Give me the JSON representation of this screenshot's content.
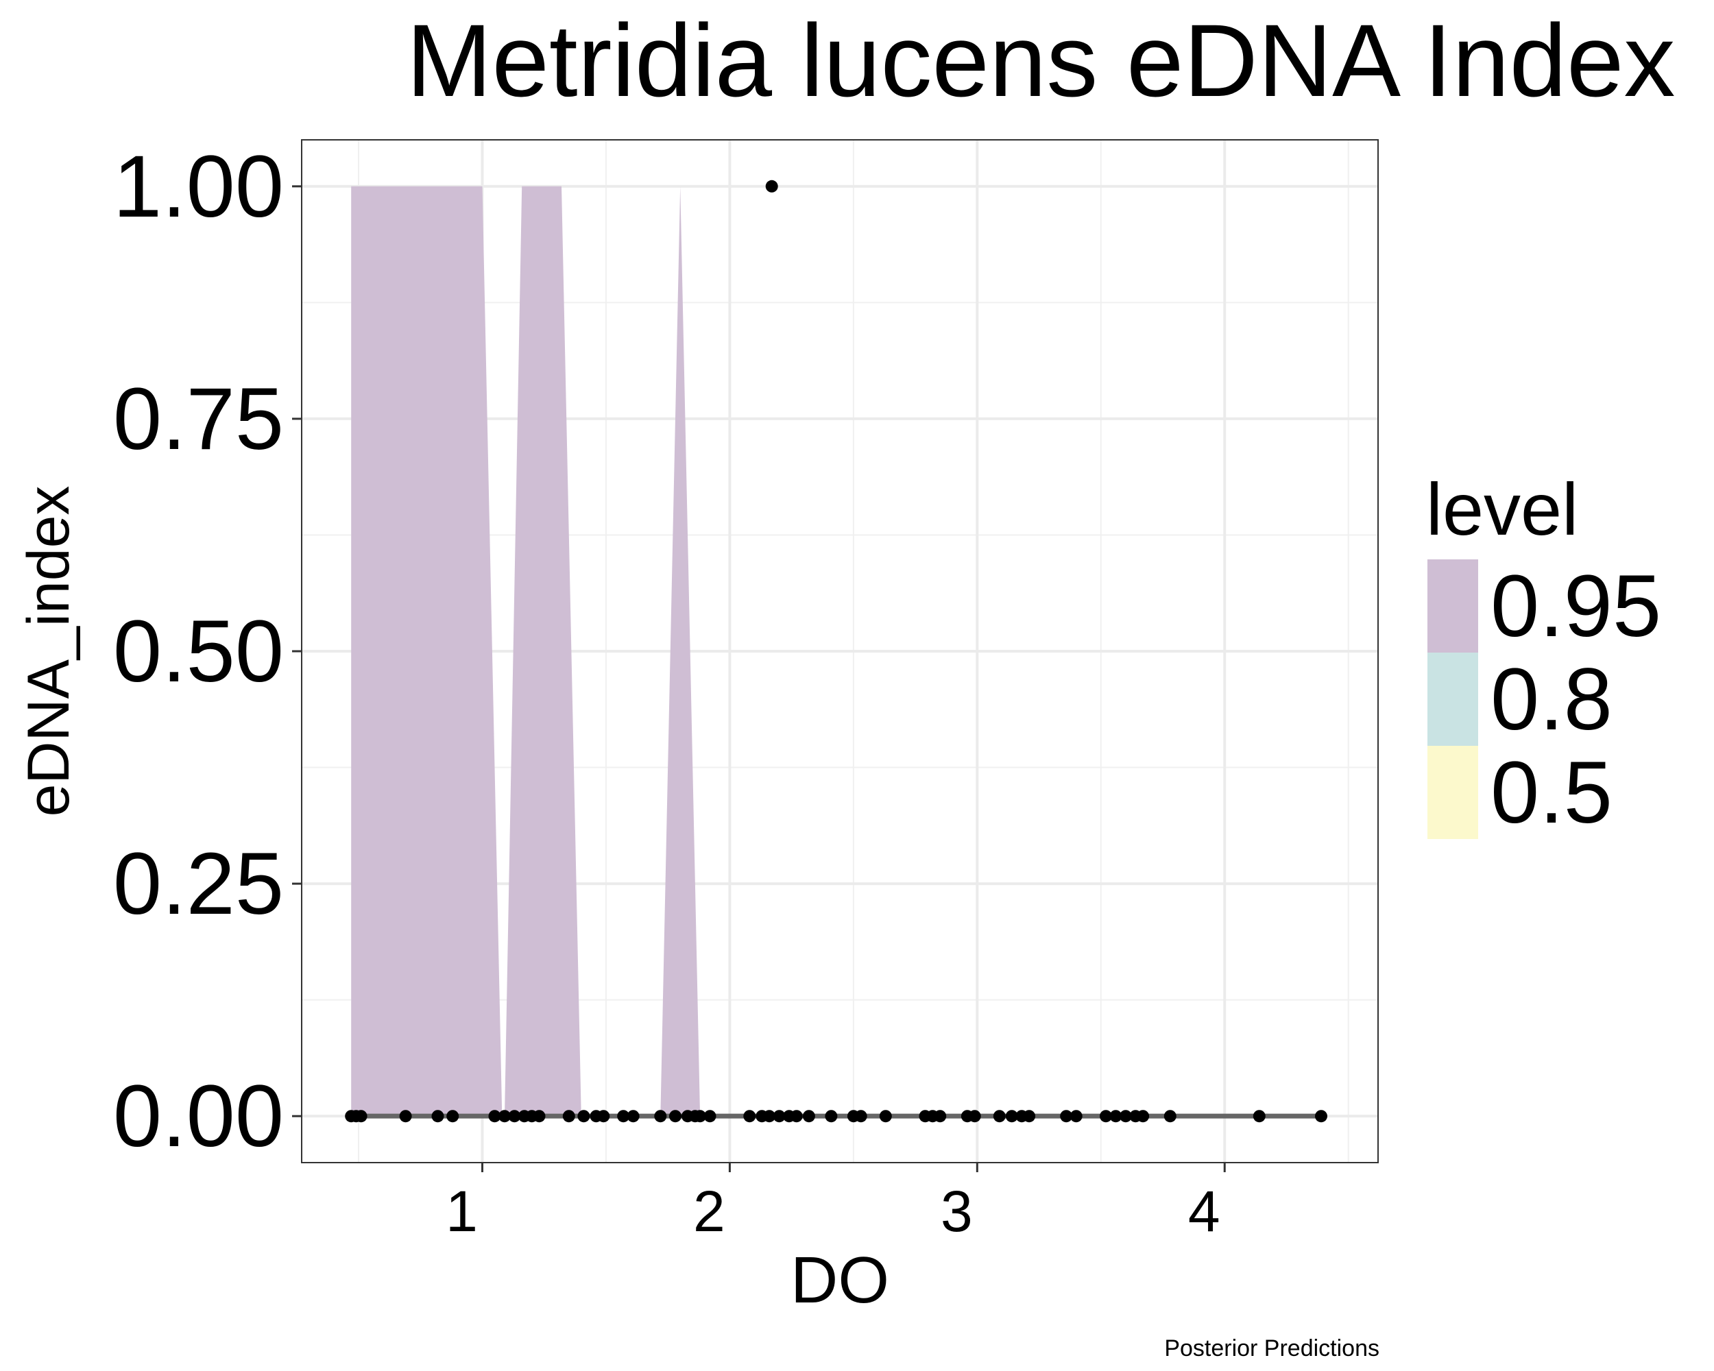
{
  "chart_data": {
    "type": "area",
    "title": "Metridia lucens eDNA Index",
    "xlabel": "DO",
    "ylabel": "eDNA_index",
    "caption": "Posterior Predictions",
    "xlim": [
      0.27,
      4.62
    ],
    "ylim": [
      -0.05,
      1.05
    ],
    "x_ticks": [
      1,
      2,
      3,
      4
    ],
    "y_ticks": [
      0,
      0.25,
      0.5,
      0.75,
      1.0
    ],
    "y_tick_labels": [
      "0.00",
      "0.25",
      "0.50",
      "0.75",
      "1.00"
    ],
    "grid": true,
    "legend": {
      "title": "level",
      "position": "right",
      "entries": [
        {
          "label": "0.95",
          "color": "#CFBED4"
        },
        {
          "label": "0.8",
          "color": "#C9E3E3"
        },
        {
          "label": "0.5",
          "color": "#FCF9CC"
        }
      ]
    },
    "ribbon_095": [
      [
        0.47,
        0
      ],
      [
        0.47,
        1.0
      ],
      [
        1.0,
        1.0
      ],
      [
        1.08,
        0
      ],
      [
        1.09,
        0
      ],
      [
        1.16,
        1.0
      ],
      [
        1.32,
        1.0
      ],
      [
        1.4,
        0
      ],
      [
        1.72,
        0
      ],
      [
        1.8,
        1.0
      ],
      [
        1.88,
        0
      ]
    ],
    "median_line": [
      [
        0.47,
        0
      ],
      [
        4.4,
        0
      ]
    ],
    "points": [
      [
        0.47,
        0
      ],
      [
        0.49,
        0
      ],
      [
        0.51,
        0
      ],
      [
        0.69,
        0
      ],
      [
        0.82,
        0
      ],
      [
        0.88,
        0
      ],
      [
        1.05,
        0
      ],
      [
        1.09,
        0
      ],
      [
        1.13,
        0
      ],
      [
        1.17,
        0
      ],
      [
        1.2,
        0
      ],
      [
        1.23,
        0
      ],
      [
        1.35,
        0
      ],
      [
        1.41,
        0
      ],
      [
        1.46,
        0
      ],
      [
        1.49,
        0
      ],
      [
        1.57,
        0
      ],
      [
        1.61,
        0
      ],
      [
        1.72,
        0
      ],
      [
        1.78,
        0
      ],
      [
        1.83,
        0
      ],
      [
        1.86,
        0
      ],
      [
        1.88,
        0
      ],
      [
        1.92,
        0
      ],
      [
        2.08,
        0
      ],
      [
        2.13,
        0
      ],
      [
        2.16,
        0
      ],
      [
        2.2,
        0
      ],
      [
        2.24,
        0
      ],
      [
        2.27,
        0
      ],
      [
        2.32,
        0
      ],
      [
        2.41,
        0
      ],
      [
        2.5,
        0
      ],
      [
        2.53,
        0
      ],
      [
        2.63,
        0
      ],
      [
        2.79,
        0
      ],
      [
        2.82,
        0
      ],
      [
        2.85,
        0
      ],
      [
        2.96,
        0
      ],
      [
        2.99,
        0
      ],
      [
        3.09,
        0
      ],
      [
        3.14,
        0
      ],
      [
        3.18,
        0
      ],
      [
        3.21,
        0
      ],
      [
        3.36,
        0
      ],
      [
        3.4,
        0
      ],
      [
        3.52,
        0
      ],
      [
        3.56,
        0
      ],
      [
        3.6,
        0
      ],
      [
        3.64,
        0
      ],
      [
        3.67,
        0
      ],
      [
        3.78,
        0
      ],
      [
        4.14,
        0
      ],
      [
        4.39,
        0
      ],
      [
        2.17,
        1.0
      ]
    ]
  }
}
